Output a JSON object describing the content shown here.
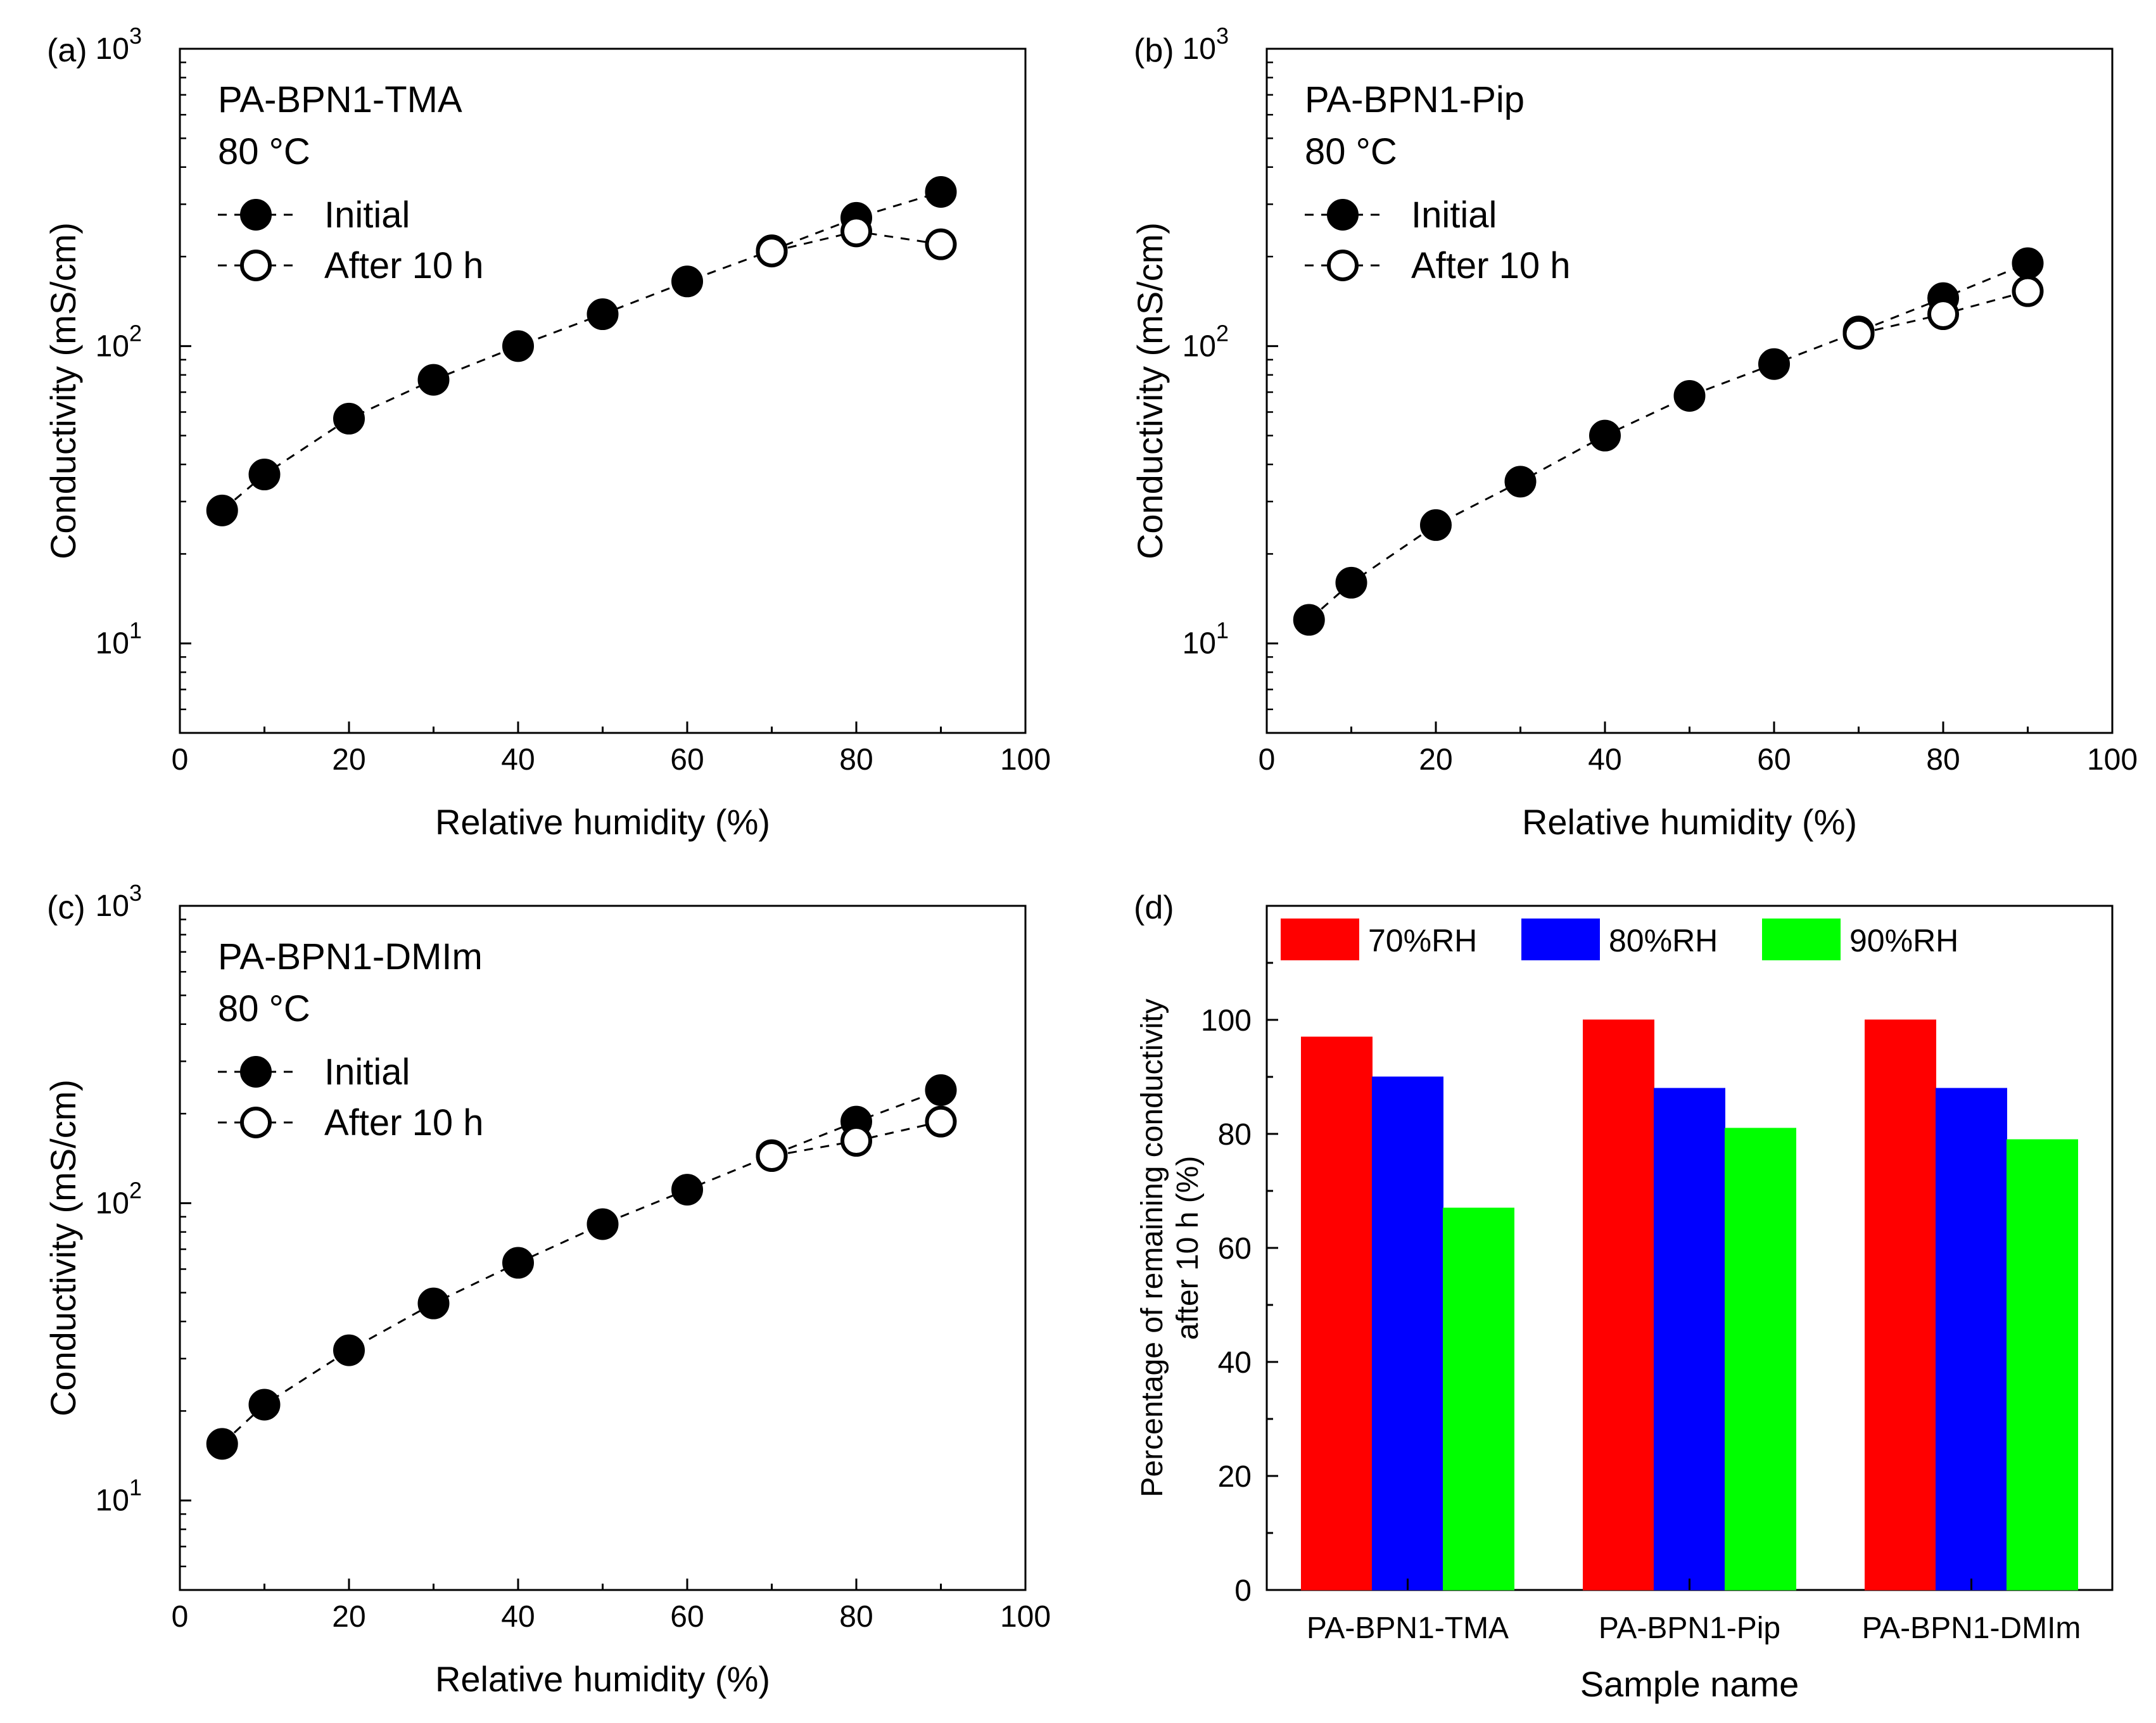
{
  "chart_data": [
    {
      "type": "scatter",
      "panel_label": "(a)",
      "annotations": [
        "PA-BPN1-TMA",
        "80 °C"
      ],
      "xlabel": "Relative humidity (%)",
      "ylabel": "Conductivity (mS/cm)",
      "x_ticks": [
        "0",
        "20",
        "40",
        "60",
        "80",
        "100"
      ],
      "y_ticks": [
        {
          "base": "10",
          "exp": "1"
        },
        {
          "base": "10",
          "exp": "2"
        },
        {
          "base": "10",
          "exp": "3"
        }
      ],
      "xlim": [
        0,
        100
      ],
      "ylim": [
        5,
        1000
      ],
      "yscale": "log",
      "legend_position": "top-left",
      "series": [
        {
          "name": "Initial",
          "marker": "filled-circle",
          "x": [
            5,
            10,
            20,
            30,
            40,
            50,
            60,
            70,
            80,
            90
          ],
          "y": [
            28,
            37,
            57,
            77,
            100,
            128,
            165,
            210,
            270,
            330
          ]
        },
        {
          "name": "After 10 h",
          "marker": "open-circle",
          "x": [
            70,
            80,
            90
          ],
          "y": [
            208,
            243,
            220
          ]
        }
      ]
    },
    {
      "type": "scatter",
      "panel_label": "(b)",
      "annotations": [
        "PA-BPN1-Pip",
        "80 °C"
      ],
      "xlabel": "Relative humidity (%)",
      "ylabel": "Conductivity (mS/cm)",
      "x_ticks": [
        "0",
        "20",
        "40",
        "60",
        "80",
        "100"
      ],
      "y_ticks": [
        {
          "base": "10",
          "exp": "1"
        },
        {
          "base": "10",
          "exp": "2"
        },
        {
          "base": "10",
          "exp": "3"
        }
      ],
      "xlim": [
        0,
        100
      ],
      "ylim": [
        5,
        1000
      ],
      "yscale": "log",
      "legend_position": "top-left",
      "series": [
        {
          "name": "Initial",
          "marker": "filled-circle",
          "x": [
            5,
            10,
            20,
            30,
            40,
            50,
            60,
            70,
            80,
            90
          ],
          "y": [
            12,
            16,
            25,
            35,
            50,
            68,
            87,
            112,
            145,
            190
          ]
        },
        {
          "name": "After 10 h",
          "marker": "open-circle",
          "x": [
            70,
            80,
            90
          ],
          "y": [
            110,
            128,
            153
          ]
        }
      ]
    },
    {
      "type": "scatter",
      "panel_label": "(c)",
      "annotations": [
        "PA-BPN1-DMIm",
        "80 °C"
      ],
      "xlabel": "Relative humidity (%)",
      "ylabel": "Conductivity (mS/cm)",
      "x_ticks": [
        "0",
        "20",
        "40",
        "60",
        "80",
        "100"
      ],
      "y_ticks": [
        {
          "base": "10",
          "exp": "1"
        },
        {
          "base": "10",
          "exp": "2"
        },
        {
          "base": "10",
          "exp": "3"
        }
      ],
      "xlim": [
        0,
        100
      ],
      "ylim": [
        5,
        1000
      ],
      "yscale": "log",
      "legend_position": "top-left",
      "series": [
        {
          "name": "Initial",
          "marker": "filled-circle",
          "x": [
            5,
            10,
            20,
            30,
            40,
            50,
            60,
            70,
            80,
            90
          ],
          "y": [
            15.5,
            21,
            32,
            46,
            63,
            85,
            111,
            145,
            188,
            240
          ]
        },
        {
          "name": "After 10 h",
          "marker": "open-circle",
          "x": [
            70,
            80,
            90
          ],
          "y": [
            144,
            162,
            188
          ]
        }
      ]
    },
    {
      "type": "bar",
      "panel_label": "(d)",
      "xlabel": "Sample name",
      "ylabel_lines": [
        "Percentage of remaining conductivity",
        "after 10 h (%)"
      ],
      "categories": [
        "PA-BPN1-TMA",
        "PA-BPN1-Pip",
        "PA-BPN1-DMIm"
      ],
      "y_ticks": [
        "0",
        "20",
        "40",
        "60",
        "80",
        "100"
      ],
      "ylim": [
        0,
        120
      ],
      "legend_position": "top",
      "series": [
        {
          "name": "70%RH",
          "color": "#ff0000",
          "values": [
            97,
            100,
            100
          ]
        },
        {
          "name": "80%RH",
          "color": "#0000ff",
          "values": [
            90,
            88,
            88
          ]
        },
        {
          "name": "90%RH",
          "color": "#00ff00",
          "values": [
            67,
            81,
            79
          ]
        }
      ]
    }
  ]
}
